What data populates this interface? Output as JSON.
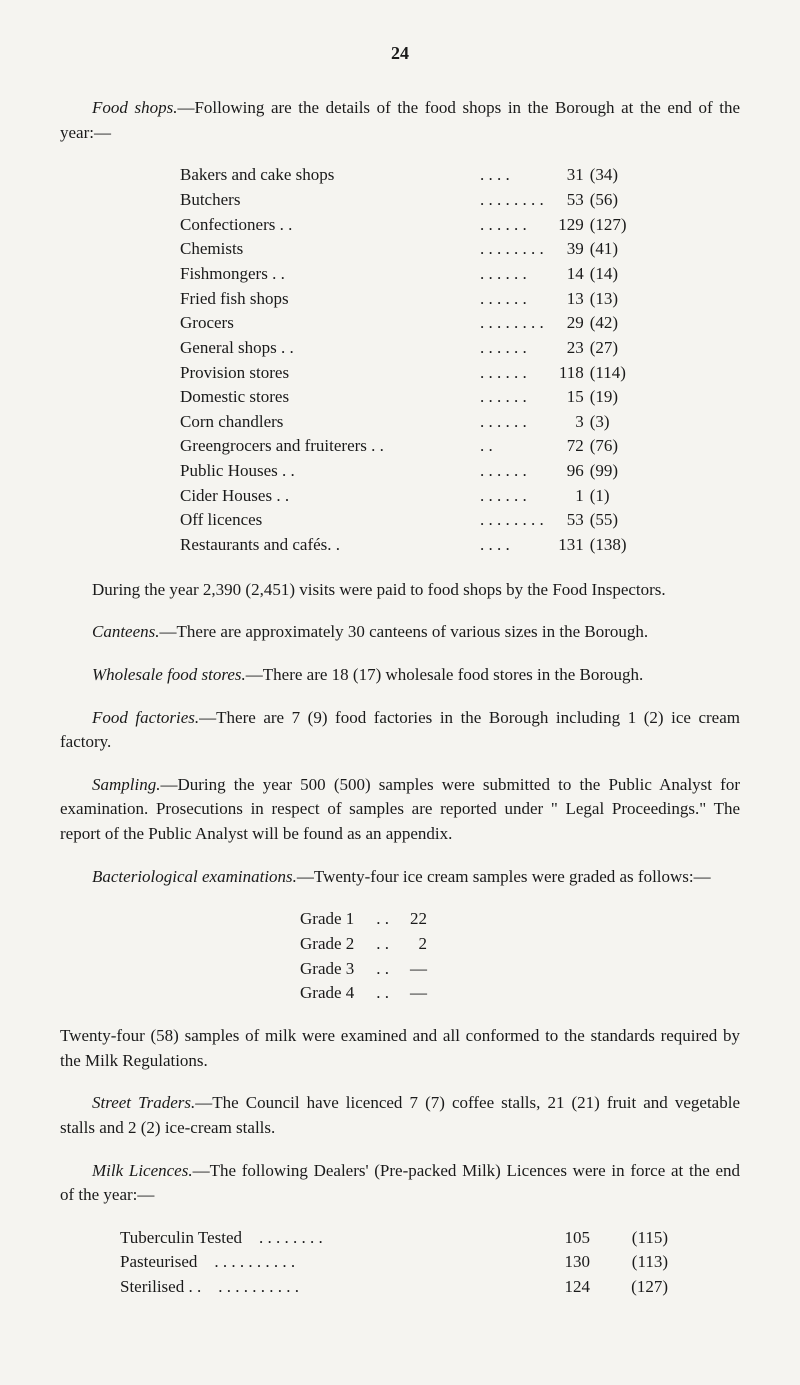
{
  "page_number": "24",
  "paragraphs": {
    "food_shops_intro": {
      "lead": "Food shops.",
      "rest": "—Following are the details of the food shops in the Borough at the end of the year:—"
    },
    "visits": "During the year 2,390 (2,451) visits were paid to food shops by the Food Inspectors.",
    "canteens": {
      "lead": "Canteens.",
      "rest": "—There are approximately 30 canteens of various sizes in the Borough."
    },
    "wholesale": {
      "lead": "Wholesale food stores.",
      "rest": "—There are 18 (17) wholesale food stores in the Borough."
    },
    "factories": {
      "lead": "Food factories.",
      "rest": "—There are 7 (9) food factories in the Borough including 1 (2) ice cream factory."
    },
    "sampling": {
      "lead": "Sampling.",
      "rest": "—During the year 500 (500) samples were submitted to the Public Analyst for examination. Prosecutions in respect of samples are reported under \" Legal Proceedings.\" The report of the Public Analyst will be found as an appendix."
    },
    "bacteriological": {
      "lead": "Bacteriological examinations.",
      "rest": "—Twenty-four ice cream samples were graded as follows:—"
    },
    "milk_samples": "Twenty-four (58) samples of milk were examined and all conformed to the standards required by the Milk Regulations.",
    "street_traders": {
      "lead": "Street Traders.",
      "rest": "—The Council have licenced 7 (7) coffee stalls, 21 (21) fruit and vegetable stalls and 2 (2) ice-cream stalls."
    },
    "milk_licences": {
      "lead": "Milk Licences.",
      "rest": "—The following Dealers' (Pre-packed Milk) Licences were in force at the end of the year:—"
    }
  },
  "food_shops": [
    {
      "label": "Bakers and cake shops",
      "dots": ". .    . .",
      "val": "31",
      "prev": "(34)"
    },
    {
      "label": "Butchers",
      "dots": ". .    . .    . .    . .",
      "val": "53",
      "prev": "(56)"
    },
    {
      "label": "Confectioners . .",
      "dots": ". .    . .    . .",
      "val": "129",
      "prev": "(127)"
    },
    {
      "label": "Chemists",
      "dots": ". .    . .    . .    . .",
      "val": "39",
      "prev": "(41)"
    },
    {
      "label": "Fishmongers  . .",
      "dots": ". .    . .    . .",
      "val": "14",
      "prev": "(14)"
    },
    {
      "label": "Fried fish shops",
      "dots": ". .    . .    . .",
      "val": "13",
      "prev": "(13)"
    },
    {
      "label": "Grocers",
      "dots": ". .    . .    . .    . .",
      "val": "29",
      "prev": "(42)"
    },
    {
      "label": "General shops . .",
      "dots": ". .    . .    . .",
      "val": "23",
      "prev": "(27)"
    },
    {
      "label": "Provision stores",
      "dots": ". .    . .    . .",
      "val": "118",
      "prev": "(114)"
    },
    {
      "label": "Domestic stores",
      "dots": ". .    . .    . .",
      "val": "15",
      "prev": "(19)"
    },
    {
      "label": "Corn chandlers",
      "dots": ". .    . .    . .",
      "val": "3",
      "prev": "(3)"
    },
    {
      "label": "Greengrocers and fruiterers . .",
      "dots": ". .",
      "val": "72",
      "prev": "(76)"
    },
    {
      "label": "Public Houses . .",
      "dots": ". .    . .    . .",
      "val": "96",
      "prev": "(99)"
    },
    {
      "label": "Cider Houses . .",
      "dots": ". .    . .    . .",
      "val": "1",
      "prev": "(1)"
    },
    {
      "label": "Off licences",
      "dots": ". .    . .    . .    . .",
      "val": "53",
      "prev": "(55)"
    },
    {
      "label": "Restaurants and cafés. .",
      "dots": ". .    . .",
      "val": "131",
      "prev": "(138)"
    }
  ],
  "grades": [
    {
      "label": "Grade 1",
      "dots": ". .",
      "val": "22"
    },
    {
      "label": "Grade 2",
      "dots": ". .",
      "val": "2"
    },
    {
      "label": "Grade 3",
      "dots": ". .",
      "val": "—"
    },
    {
      "label": "Grade 4",
      "dots": ". .",
      "val": "—"
    }
  ],
  "milk": [
    {
      "label": "Tuberculin Tested",
      "dots": ". .    . .    . .    . .",
      "val": "105",
      "prev": "(115)"
    },
    {
      "label": "Pasteurised",
      "dots": ". .    . .    . .    . .    . .",
      "val": "130",
      "prev": "(113)"
    },
    {
      "label": "Sterilised   . .",
      "dots": ". .    . .    . .    . .    . .",
      "val": "124",
      "prev": "(127)"
    }
  ]
}
